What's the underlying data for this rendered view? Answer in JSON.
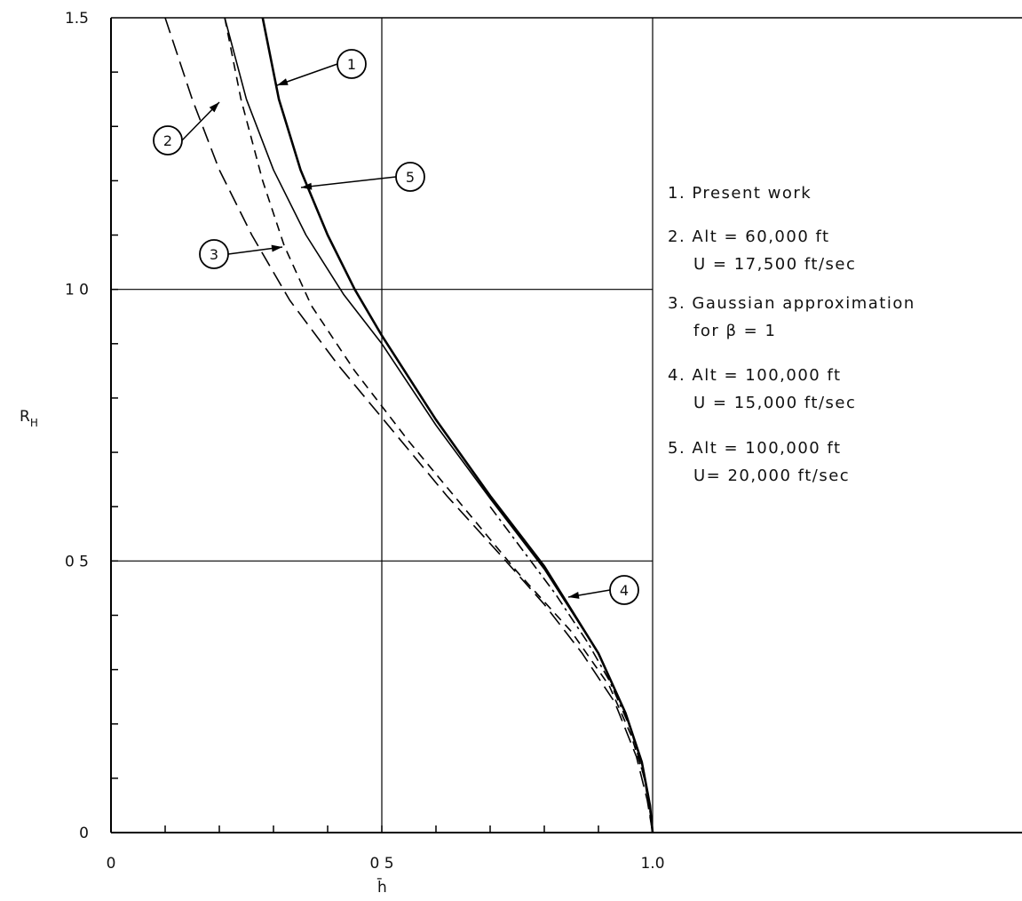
{
  "chart_data": {
    "type": "line",
    "xlabel": "h̄",
    "ylabel": "R_H",
    "xlim": [
      0,
      1.0
    ],
    "ylim": [
      0,
      1.5
    ],
    "grid": true,
    "x_tick_labels": [
      {
        "value": 0,
        "label": "0"
      },
      {
        "value": 0.5,
        "label": "0 5"
      },
      {
        "value": 1.0,
        "label": "1.0"
      }
    ],
    "y_tick_labels": [
      {
        "value": 0,
        "label": "0"
      },
      {
        "value": 0.5,
        "label": "0 5"
      },
      {
        "value": 1.0,
        "label": "1 0"
      },
      {
        "value": 1.5,
        "label": "1.5"
      }
    ],
    "legend": [
      {
        "key": "1",
        "lines": [
          "1.  Present  work"
        ]
      },
      {
        "key": "2",
        "lines": [
          "2.  Alt = 60,000 ft",
          "U = 17,500 ft/sec"
        ]
      },
      {
        "key": "3",
        "lines": [
          "3.  Gaussian  approximation",
          "for  β = 1"
        ]
      },
      {
        "key": "4",
        "lines": [
          "4.  Alt = 100,000 ft",
          "U = 15,000 ft/sec"
        ]
      },
      {
        "key": "5",
        "lines": [
          "5.  Alt = 100,000 ft",
          "U= 20,000 ft/sec"
        ]
      }
    ],
    "legend_placement": "right",
    "series": [
      {
        "id": "1",
        "style": "solid-thick",
        "points": [
          [
            0.28,
            1.5
          ],
          [
            0.31,
            1.35
          ],
          [
            0.35,
            1.22
          ],
          [
            0.4,
            1.1
          ],
          [
            0.45,
            1.0
          ],
          [
            0.5,
            0.915
          ],
          [
            0.6,
            0.76
          ],
          [
            0.7,
            0.62
          ],
          [
            0.8,
            0.49
          ],
          [
            0.9,
            0.33
          ],
          [
            0.95,
            0.22
          ],
          [
            0.98,
            0.13
          ],
          [
            0.995,
            0.05
          ],
          [
            1.0,
            0.0
          ]
        ]
      },
      {
        "id": "2",
        "style": "dashed",
        "points": [
          [
            0.21,
            1.5
          ],
          [
            0.24,
            1.35
          ],
          [
            0.28,
            1.2
          ],
          [
            0.32,
            1.08
          ],
          [
            0.37,
            0.97
          ],
          [
            0.45,
            0.85
          ],
          [
            0.55,
            0.72
          ],
          [
            0.65,
            0.6
          ],
          [
            0.75,
            0.48
          ],
          [
            0.85,
            0.37
          ],
          [
            0.92,
            0.27
          ],
          [
            0.96,
            0.18
          ],
          [
            0.985,
            0.1
          ],
          [
            1.0,
            0.0
          ]
        ]
      },
      {
        "id": "3",
        "style": "long-dash",
        "points": [
          [
            0.1,
            1.5
          ],
          [
            0.15,
            1.35
          ],
          [
            0.2,
            1.22
          ],
          [
            0.26,
            1.1
          ],
          [
            0.33,
            0.98
          ],
          [
            0.42,
            0.86
          ],
          [
            0.52,
            0.74
          ],
          [
            0.62,
            0.62
          ],
          [
            0.72,
            0.51
          ],
          [
            0.8,
            0.42
          ],
          [
            0.87,
            0.33
          ],
          [
            0.93,
            0.24
          ],
          [
            0.97,
            0.14
          ],
          [
            0.99,
            0.06
          ],
          [
            1.0,
            0.0
          ]
        ]
      },
      {
        "id": "4",
        "style": "dash-dot",
        "points": [
          [
            0.7,
            0.6
          ],
          [
            0.76,
            0.52
          ],
          [
            0.82,
            0.44
          ],
          [
            0.88,
            0.35
          ],
          [
            0.92,
            0.28
          ],
          [
            0.96,
            0.19
          ],
          [
            0.99,
            0.08
          ],
          [
            1.0,
            0.0
          ]
        ]
      },
      {
        "id": "5",
        "style": "solid-thin",
        "points": [
          [
            0.21,
            1.5
          ],
          [
            0.25,
            1.35
          ],
          [
            0.3,
            1.22
          ],
          [
            0.36,
            1.1
          ],
          [
            0.43,
            0.99
          ],
          [
            0.5,
            0.9
          ],
          [
            0.6,
            0.75
          ],
          [
            0.7,
            0.615
          ],
          [
            0.8,
            0.485
          ],
          [
            0.9,
            0.33
          ],
          [
            0.95,
            0.22
          ],
          [
            0.98,
            0.13
          ],
          [
            0.995,
            0.05
          ],
          [
            1.0,
            0.0
          ]
        ]
      }
    ],
    "callouts": [
      {
        "id": "1",
        "text": "1"
      },
      {
        "id": "2",
        "text": "2"
      },
      {
        "id": "3",
        "text": "3"
      },
      {
        "id": "4",
        "text": "4"
      },
      {
        "id": "5",
        "text": "5"
      }
    ]
  }
}
